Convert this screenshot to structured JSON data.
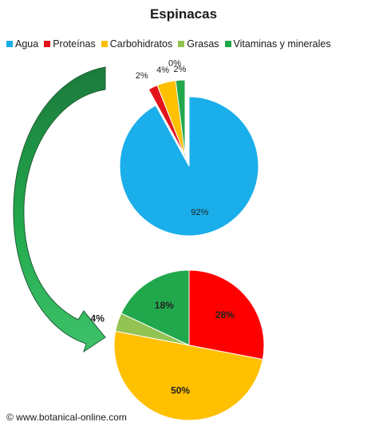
{
  "chart_data": [
    {
      "type": "pie",
      "title": "Espinacas",
      "legend_position": "top",
      "categories": [
        "Agua",
        "Proteínas",
        "Carbohidratos",
        "Grasas",
        "Vitaminas y minerales"
      ],
      "values": [
        92,
        2,
        4,
        0,
        2
      ],
      "data_labels": [
        "92%",
        "2%",
        "4%",
        "0%",
        "2%"
      ],
      "colors": [
        "#1aaeea",
        "#e3131b",
        "#ffc000",
        "#92c353",
        "#22a84c"
      ],
      "exploded": [
        "Proteínas",
        "Carbohidratos",
        "Grasas",
        "Vitaminas y minerales"
      ]
    },
    {
      "type": "pie",
      "categories": [
        "Proteínas",
        "Carbohidratos",
        "Grasas",
        "Vitaminas y minerales"
      ],
      "values": [
        28,
        50,
        4,
        18
      ],
      "data_labels": [
        "28%",
        "50%",
        "4%",
        "18%"
      ],
      "colors": [
        "#ff0000",
        "#ffc000",
        "#92c353",
        "#22a84c"
      ]
    }
  ],
  "legend": [
    {
      "label": "Agua",
      "color": "#1aaeea"
    },
    {
      "label": "Proteínas",
      "color": "#e3131b"
    },
    {
      "label": "Carbohidratos",
      "color": "#ffc000"
    },
    {
      "label": "Grasas",
      "color": "#92c353"
    },
    {
      "label": "Vitaminas y minerales",
      "color": "#22a84c"
    }
  ],
  "footer": "© www.botanical-online.com"
}
